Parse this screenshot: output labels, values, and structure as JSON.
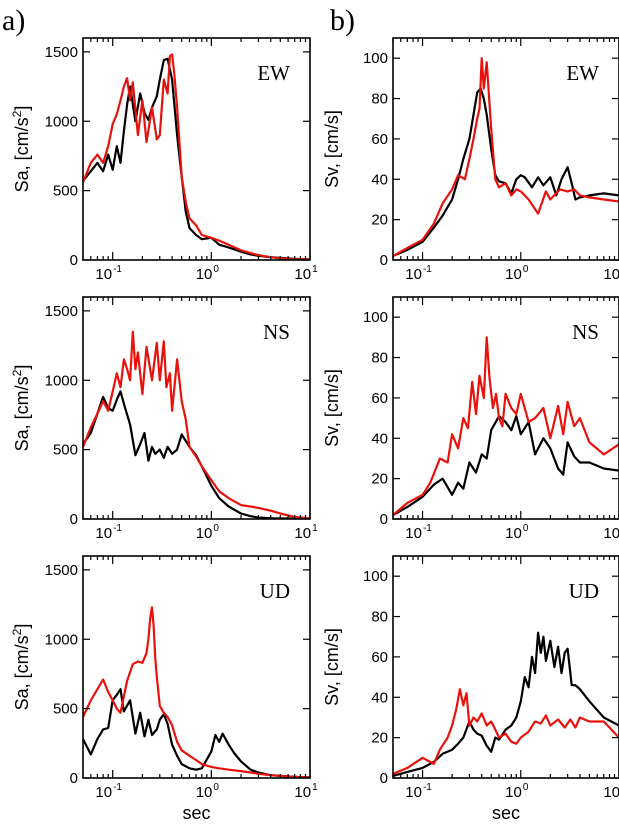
{
  "panel_labels": [
    "a)",
    "b)"
  ],
  "colors": {
    "black_series": "#000000",
    "red_series": "#e8120c"
  },
  "chart_data": [
    {
      "type": "line",
      "panel": "a",
      "component": "EW",
      "ylabel": "Sa, [cm/s",
      "ylabel_sup": "2",
      "ylabel_end": "]",
      "xlabel": "",
      "xscale": "log",
      "xlim": [
        0.05,
        10
      ],
      "ylim": [
        0,
        1600
      ],
      "yticks": [
        0,
        500,
        1000,
        1500
      ],
      "series": [
        {
          "color": "#000000",
          "x": [
            0.05,
            0.06,
            0.07,
            0.08,
            0.09,
            0.1,
            0.11,
            0.12,
            0.13,
            0.14,
            0.15,
            0.17,
            0.19,
            0.21,
            0.23,
            0.25,
            0.28,
            0.3,
            0.33,
            0.36,
            0.4,
            0.45,
            0.5,
            0.55,
            0.6,
            0.7,
            0.8,
            1.0,
            1.2,
            1.5,
            2,
            2.5,
            3,
            4,
            5,
            7,
            10
          ],
          "y": [
            570,
            640,
            700,
            640,
            760,
            650,
            820,
            700,
            930,
            1120,
            1250,
            1000,
            1200,
            1060,
            1010,
            1100,
            1180,
            1300,
            1440,
            1450,
            1300,
            900,
            600,
            350,
            230,
            180,
            150,
            160,
            110,
            90,
            60,
            40,
            30,
            20,
            15,
            8,
            5
          ]
        },
        {
          "color": "#e8120c",
          "x": [
            0.05,
            0.06,
            0.07,
            0.08,
            0.09,
            0.1,
            0.11,
            0.12,
            0.13,
            0.14,
            0.15,
            0.16,
            0.18,
            0.2,
            0.22,
            0.25,
            0.28,
            0.3,
            0.33,
            0.36,
            0.38,
            0.4,
            0.42,
            0.45,
            0.48,
            0.5,
            0.55,
            0.6,
            0.7,
            0.8,
            1.0,
            1.2,
            1.5,
            2,
            2.5,
            3,
            4,
            5,
            7,
            10
          ],
          "y": [
            560,
            700,
            760,
            700,
            820,
            980,
            1050,
            1150,
            1250,
            1310,
            1150,
            1280,
            900,
            1150,
            850,
            1100,
            870,
            900,
            1300,
            1200,
            1470,
            1480,
            1350,
            1100,
            800,
            600,
            420,
            300,
            250,
            180,
            160,
            140,
            110,
            70,
            50,
            35,
            20,
            12,
            6,
            4
          ]
        }
      ]
    },
    {
      "type": "line",
      "panel": "b",
      "component": "EW",
      "ylabel": "Sv, [cm/s]",
      "xlabel": "",
      "xscale": "log",
      "xlim": [
        0.05,
        10
      ],
      "ylim": [
        0,
        110
      ],
      "yticks": [
        0,
        20,
        40,
        60,
        80,
        100
      ],
      "series": [
        {
          "color": "#000000",
          "x": [
            0.05,
            0.07,
            0.1,
            0.13,
            0.16,
            0.2,
            0.23,
            0.26,
            0.3,
            0.33,
            0.36,
            0.39,
            0.42,
            0.45,
            0.5,
            0.55,
            0.6,
            0.7,
            0.8,
            0.9,
            1.0,
            1.1,
            1.3,
            1.5,
            1.7,
            2.0,
            2.3,
            2.6,
            3.0,
            3.3,
            3.6,
            4,
            5,
            7,
            10
          ],
          "y": [
            2,
            5,
            9,
            16,
            22,
            30,
            40,
            50,
            60,
            72,
            83,
            85,
            80,
            72,
            55,
            42,
            39,
            38,
            33,
            40,
            42,
            41,
            36,
            41,
            37,
            41,
            32,
            40,
            46,
            38,
            30,
            31,
            32,
            33,
            32
          ]
        },
        {
          "color": "#e8120c",
          "x": [
            0.05,
            0.07,
            0.1,
            0.13,
            0.16,
            0.2,
            0.23,
            0.27,
            0.3,
            0.33,
            0.36,
            0.38,
            0.4,
            0.42,
            0.45,
            0.5,
            0.55,
            0.6,
            0.7,
            0.8,
            0.9,
            1.0,
            1.2,
            1.5,
            1.8,
            2.0,
            2.5,
            3.0,
            3.5,
            4,
            5,
            7,
            10
          ],
          "y": [
            2,
            6,
            10,
            18,
            28,
            35,
            42,
            40,
            50,
            60,
            70,
            75,
            100,
            85,
            98,
            65,
            40,
            36,
            38,
            32,
            35,
            34,
            30,
            23,
            34,
            30,
            35,
            34,
            35,
            32,
            31,
            30,
            29
          ]
        }
      ]
    },
    {
      "type": "line",
      "panel": "a",
      "component": "NS",
      "ylabel": "Sa, [cm/s",
      "ylabel_sup": "2",
      "ylabel_end": "]",
      "xlabel": "",
      "xscale": "log",
      "xlim": [
        0.05,
        10
      ],
      "ylim": [
        0,
        1600
      ],
      "yticks": [
        0,
        500,
        1000,
        1500
      ],
      "series": [
        {
          "color": "#000000",
          "x": [
            0.05,
            0.06,
            0.07,
            0.08,
            0.09,
            0.1,
            0.11,
            0.12,
            0.13,
            0.15,
            0.17,
            0.19,
            0.21,
            0.23,
            0.25,
            0.27,
            0.3,
            0.33,
            0.36,
            0.4,
            0.45,
            0.5,
            0.6,
            0.7,
            0.8,
            1.0,
            1.2,
            1.5,
            2,
            2.5,
            3,
            4,
            5,
            7,
            10
          ],
          "y": [
            540,
            620,
            760,
            880,
            800,
            780,
            860,
            920,
            830,
            680,
            460,
            540,
            620,
            420,
            520,
            470,
            500,
            440,
            520,
            470,
            500,
            610,
            520,
            460,
            380,
            240,
            150,
            90,
            40,
            20,
            10,
            6,
            4,
            3,
            2
          ]
        },
        {
          "color": "#e8120c",
          "x": [
            0.05,
            0.06,
            0.07,
            0.08,
            0.09,
            0.1,
            0.11,
            0.12,
            0.13,
            0.14,
            0.15,
            0.16,
            0.17,
            0.18,
            0.2,
            0.22,
            0.25,
            0.28,
            0.3,
            0.33,
            0.35,
            0.38,
            0.4,
            0.45,
            0.5,
            0.55,
            0.6,
            0.7,
            0.8,
            1.0,
            1.2,
            1.5,
            2,
            2.5,
            3,
            4,
            5,
            7,
            10
          ],
          "y": [
            520,
            660,
            760,
            850,
            780,
            920,
            1050,
            950,
            1150,
            1080,
            1000,
            1350,
            1080,
            1200,
            900,
            1240,
            1000,
            1270,
            1000,
            1280,
            950,
            1050,
            780,
            1150,
            850,
            720,
            520,
            450,
            380,
            280,
            200,
            150,
            100,
            90,
            80,
            60,
            40,
            15,
            5
          ]
        }
      ]
    },
    {
      "type": "line",
      "panel": "b",
      "component": "NS",
      "ylabel": "Sv, [cm/s]",
      "xlabel": "",
      "xscale": "log",
      "xlim": [
        0.05,
        10
      ],
      "ylim": [
        0,
        110
      ],
      "yticks": [
        0,
        20,
        40,
        60,
        80,
        100
      ],
      "series": [
        {
          "color": "#000000",
          "x": [
            0.05,
            0.07,
            0.1,
            0.13,
            0.16,
            0.2,
            0.23,
            0.26,
            0.3,
            0.35,
            0.4,
            0.45,
            0.5,
            0.6,
            0.7,
            0.8,
            0.9,
            1.0,
            1.2,
            1.4,
            1.7,
            2.0,
            2.4,
            2.7,
            3.0,
            3.5,
            4,
            5,
            7,
            10
          ],
          "y": [
            2,
            6,
            11,
            17,
            20,
            12,
            18,
            15,
            28,
            23,
            32,
            30,
            44,
            51,
            48,
            44,
            51,
            42,
            48,
            32,
            40,
            35,
            25,
            22,
            38,
            31,
            28,
            28,
            25,
            24
          ]
        },
        {
          "color": "#e8120c",
          "x": [
            0.05,
            0.07,
            0.1,
            0.12,
            0.15,
            0.18,
            0.2,
            0.23,
            0.26,
            0.29,
            0.32,
            0.35,
            0.38,
            0.42,
            0.45,
            0.48,
            0.52,
            0.56,
            0.6,
            0.65,
            0.7,
            0.8,
            0.9,
            1.0,
            1.2,
            1.4,
            1.7,
            2.0,
            2.4,
            2.7,
            3.0,
            3.5,
            4,
            5,
            7,
            10
          ],
          "y": [
            2,
            8,
            12,
            18,
            30,
            28,
            42,
            35,
            50,
            45,
            68,
            52,
            71,
            60,
            90,
            70,
            55,
            62,
            50,
            46,
            62,
            55,
            52,
            62,
            48,
            50,
            55,
            40,
            56,
            42,
            58,
            46,
            50,
            38,
            32,
            37
          ]
        }
      ]
    },
    {
      "type": "line",
      "panel": "a",
      "component": "UD",
      "ylabel": "Sa, [cm/s",
      "ylabel_sup": "2",
      "ylabel_end": "]",
      "xlabel": "sec",
      "xscale": "log",
      "xlim": [
        0.05,
        10
      ],
      "ylim": [
        0,
        1600
      ],
      "yticks": [
        0,
        500,
        1000,
        1500
      ],
      "series": [
        {
          "color": "#000000",
          "x": [
            0.05,
            0.06,
            0.07,
            0.08,
            0.09,
            0.1,
            0.11,
            0.12,
            0.13,
            0.15,
            0.17,
            0.19,
            0.21,
            0.23,
            0.25,
            0.28,
            0.3,
            0.33,
            0.36,
            0.4,
            0.45,
            0.5,
            0.6,
            0.7,
            0.8,
            1.0,
            1.1,
            1.2,
            1.3,
            1.5,
            1.7,
            2,
            2.5,
            3,
            4,
            5,
            7,
            10
          ],
          "y": [
            280,
            170,
            280,
            350,
            360,
            560,
            600,
            640,
            480,
            560,
            320,
            470,
            300,
            420,
            310,
            350,
            420,
            460,
            390,
            240,
            160,
            100,
            70,
            60,
            70,
            190,
            310,
            260,
            320,
            240,
            180,
            120,
            60,
            40,
            20,
            15,
            8,
            5
          ]
        },
        {
          "color": "#e8120c",
          "x": [
            0.05,
            0.06,
            0.07,
            0.08,
            0.09,
            0.1,
            0.11,
            0.12,
            0.14,
            0.16,
            0.18,
            0.2,
            0.22,
            0.23,
            0.24,
            0.25,
            0.26,
            0.27,
            0.28,
            0.3,
            0.33,
            0.36,
            0.4,
            0.45,
            0.5,
            0.6,
            0.7,
            0.8,
            1.0,
            1.2,
            1.5,
            2,
            2.5,
            3,
            4,
            5,
            7,
            10
          ],
          "y": [
            440,
            560,
            640,
            710,
            620,
            560,
            500,
            470,
            700,
            820,
            840,
            830,
            900,
            1000,
            1150,
            1230,
            1100,
            860,
            730,
            520,
            470,
            440,
            380,
            260,
            200,
            160,
            130,
            100,
            80,
            70,
            60,
            50,
            40,
            30,
            20,
            15,
            8,
            5
          ]
        }
      ]
    },
    {
      "type": "line",
      "panel": "b",
      "component": "UD",
      "ylabel": "Sv, [cm/s]",
      "xlabel": "sec",
      "xscale": "log",
      "xlim": [
        0.05,
        10
      ],
      "ylim": [
        0,
        110
      ],
      "yticks": [
        0,
        20,
        40,
        60,
        80,
        100
      ],
      "series": [
        {
          "color": "#000000",
          "x": [
            0.05,
            0.07,
            0.1,
            0.13,
            0.16,
            0.2,
            0.23,
            0.26,
            0.3,
            0.33,
            0.36,
            0.4,
            0.45,
            0.5,
            0.55,
            0.6,
            0.7,
            0.8,
            0.9,
            1.0,
            1.1,
            1.2,
            1.3,
            1.4,
            1.5,
            1.6,
            1.7,
            1.8,
            2.0,
            2.2,
            2.4,
            2.6,
            2.8,
            3.0,
            3.3,
            3.6,
            4,
            5,
            7,
            10
          ],
          "y": [
            1,
            3,
            5,
            8,
            12,
            14,
            17,
            20,
            28,
            24,
            22,
            21,
            16,
            13,
            20,
            19,
            24,
            26,
            30,
            38,
            50,
            45,
            60,
            52,
            72,
            62,
            70,
            58,
            68,
            55,
            65,
            52,
            62,
            64,
            46,
            46,
            44,
            38,
            30,
            26
          ]
        },
        {
          "color": "#e8120c",
          "x": [
            0.05,
            0.07,
            0.1,
            0.13,
            0.15,
            0.18,
            0.2,
            0.22,
            0.24,
            0.26,
            0.28,
            0.3,
            0.33,
            0.36,
            0.4,
            0.45,
            0.5,
            0.55,
            0.6,
            0.7,
            0.8,
            0.9,
            1.0,
            1.2,
            1.4,
            1.6,
            1.8,
            2.0,
            2.4,
            2.8,
            3.2,
            3.6,
            4,
            5,
            7,
            10
          ],
          "y": [
            2,
            5,
            10,
            7,
            14,
            20,
            26,
            34,
            44,
            36,
            42,
            26,
            30,
            28,
            32,
            26,
            28,
            24,
            20,
            22,
            18,
            17,
            20,
            23,
            28,
            27,
            31,
            26,
            29,
            25,
            29,
            25,
            30,
            28,
            28,
            20
          ]
        }
      ]
    }
  ]
}
